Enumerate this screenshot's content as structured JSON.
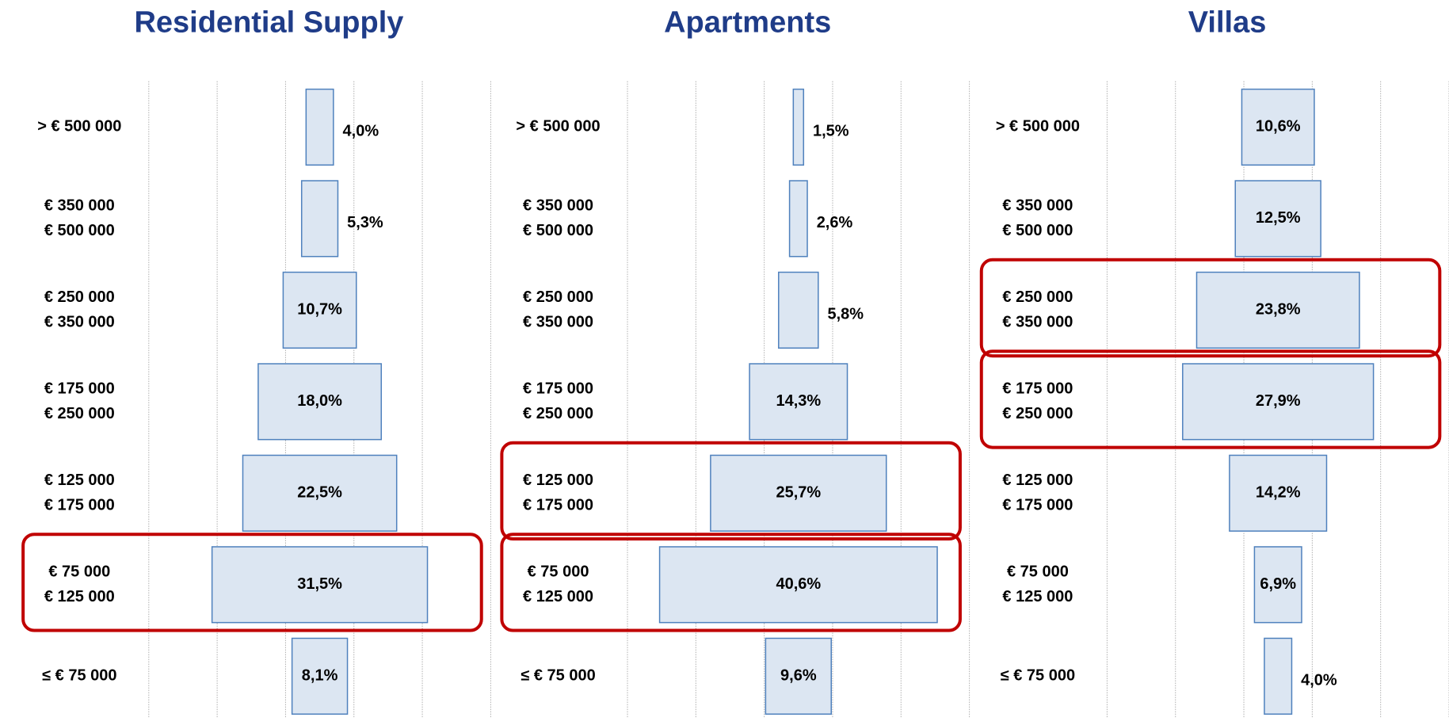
{
  "chart_data": [
    {
      "type": "bar",
      "title": "Residential Supply",
      "categories": [
        [
          "> € 500 000"
        ],
        [
          "€ 350 000",
          "€ 500 000"
        ],
        [
          "€ 250 000",
          "€ 350 000"
        ],
        [
          "€ 175 000",
          "€ 250 000"
        ],
        [
          "€ 125 000",
          "€ 175 000"
        ],
        [
          "€ 75 000",
          "€ 125 000"
        ],
        [
          "≤ € 75 000"
        ]
      ],
      "values": [
        4.0,
        5.3,
        10.7,
        18.0,
        22.5,
        31.5,
        8.1
      ],
      "value_labels": [
        "4,0%",
        "5,3%",
        "10,7%",
        "18,0%",
        "22,5%",
        "31,5%",
        "8,1%"
      ],
      "color": "#dce6f2",
      "edge_color": "#4f81bd",
      "highlight": [
        5
      ],
      "highlight_color": "#c00000",
      "xlim": [
        -25,
        25
      ],
      "xticks": [
        -25,
        -15,
        -5,
        5,
        15,
        25
      ],
      "grid": true
    },
    {
      "type": "bar",
      "title": "Apartments",
      "categories": [
        [
          "> € 500 000"
        ],
        [
          "€ 350 000",
          "€ 500 000"
        ],
        [
          "€ 250 000",
          "€ 350 000"
        ],
        [
          "€ 175 000",
          "€ 250 000"
        ],
        [
          "€ 125 000",
          "€ 175 000"
        ],
        [
          "€ 75 000",
          "€ 125 000"
        ],
        [
          "≤ € 75 000"
        ]
      ],
      "values": [
        1.5,
        2.6,
        5.8,
        14.3,
        25.7,
        40.6,
        9.6
      ],
      "value_labels": [
        "1,5%",
        "2,6%",
        "5,8%",
        "14,3%",
        "25,7%",
        "40,6%",
        "9,6%"
      ],
      "color": "#dce6f2",
      "edge_color": "#4f81bd",
      "highlight": [
        4,
        5
      ],
      "highlight_color": "#c00000",
      "xlim": [
        -25,
        25
      ],
      "xticks": [
        -25,
        -15,
        -5,
        5,
        15,
        25
      ],
      "grid": true
    },
    {
      "type": "bar",
      "title": "Villas",
      "categories": [
        [
          "> € 500 000"
        ],
        [
          "€ 350 000",
          "€ 500 000"
        ],
        [
          "€ 250 000",
          "€ 350 000"
        ],
        [
          "€ 175 000",
          "€ 250 000"
        ],
        [
          "€ 125 000",
          "€ 175 000"
        ],
        [
          "€ 75 000",
          "€ 125 000"
        ],
        [
          "≤ € 75 000"
        ]
      ],
      "values": [
        10.6,
        12.5,
        23.8,
        27.9,
        14.2,
        6.9,
        4.0
      ],
      "value_labels": [
        "10,6%",
        "12,5%",
        "23,8%",
        "27,9%",
        "14,2%",
        "6,9%",
        "4,0%"
      ],
      "color": "#dce6f2",
      "edge_color": "#4f81bd",
      "highlight": [
        2,
        3
      ],
      "highlight_color": "#c00000",
      "xlim": [
        -25,
        25
      ],
      "xticks": [
        -25,
        -15,
        -5,
        5,
        15,
        25
      ],
      "grid": true
    }
  ]
}
